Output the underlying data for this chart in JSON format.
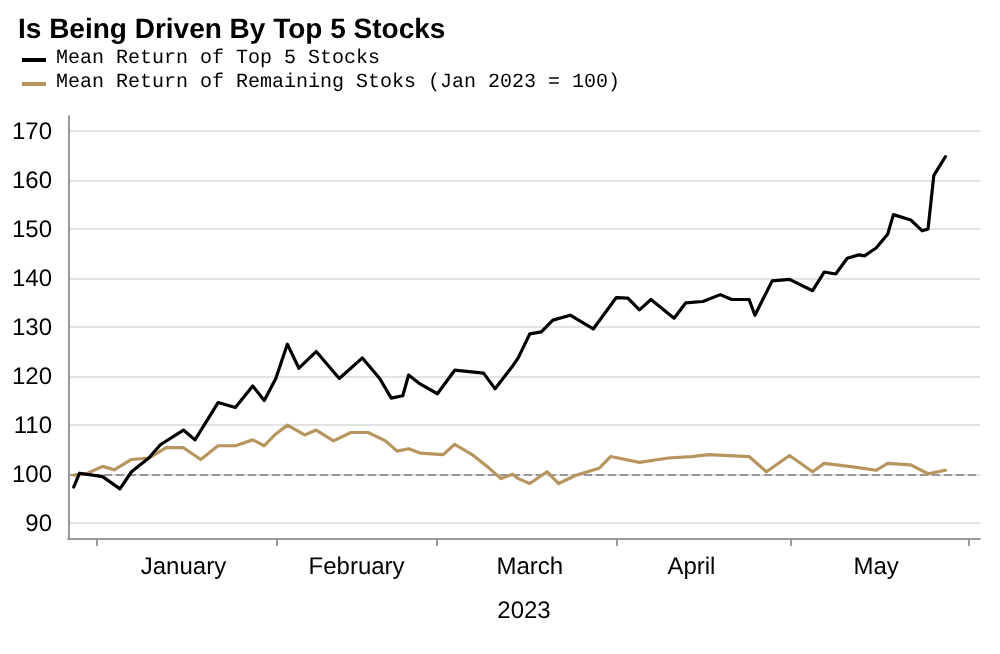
{
  "chart_data": {
    "type": "line",
    "title": "Is Being Driven By Top 5 Stocks",
    "xlabel": "2023",
    "xlim": [
      "2022-12-27",
      "2023-06-03"
    ],
    "xticks": [
      {
        "value": "2023-01-01",
        "label": null
      },
      {
        "value": "2023-02-01",
        "label": null
      },
      {
        "value": "2023-03-01",
        "label": null
      },
      {
        "value": "2023-04-01",
        "label": null
      },
      {
        "value": "2023-05-01",
        "label": null
      },
      {
        "value": "2023-06-01",
        "label": null
      },
      {
        "value": "2023-01-16",
        "label": "January"
      },
      {
        "value": "2023-02-15",
        "label": "February"
      },
      {
        "value": "2023-03-17",
        "label": "March"
      },
      {
        "value": "2023-04-14",
        "label": "April"
      },
      {
        "value": "2023-05-16",
        "label": "May"
      }
    ],
    "ylim": [
      87,
      173
    ],
    "yticks": [
      90,
      100,
      110,
      120,
      130,
      140,
      150,
      160,
      170
    ],
    "grid": "y",
    "legend": "top left",
    "marker": "none",
    "line_style": "solid",
    "ref_lines": [
      {
        "axis": "y",
        "value": 100,
        "color": "#999999",
        "line_style": "dashed"
      }
    ],
    "series": [
      {
        "name": "Mean Return of Top 5 Stocks",
        "color": "#000000",
        "x": [
          "2022-12-28",
          "2022-12-29",
          "2023-01-02",
          "2023-01-05",
          "2023-01-07",
          "2023-01-10",
          "2023-01-12",
          "2023-01-16",
          "2023-01-18",
          "2023-01-22",
          "2023-01-25",
          "2023-01-28",
          "2023-01-30",
          "2023-02-01",
          "2023-02-03",
          "2023-02-05",
          "2023-02-08",
          "2023-02-12",
          "2023-02-16",
          "2023-02-19",
          "2023-02-21",
          "2023-02-23",
          "2023-02-24",
          "2023-02-26",
          "2023-03-01",
          "2023-03-04",
          "2023-03-09",
          "2023-03-11",
          "2023-03-14",
          "2023-03-15",
          "2023-03-17",
          "2023-03-19",
          "2023-03-21",
          "2023-03-24",
          "2023-03-28",
          "2023-03-30",
          "2023-04-01",
          "2023-04-03",
          "2023-04-05",
          "2023-04-07",
          "2023-04-11",
          "2023-04-13",
          "2023-04-16",
          "2023-04-19",
          "2023-04-21",
          "2023-04-24",
          "2023-04-25",
          "2023-04-28",
          "2023-05-01",
          "2023-05-05",
          "2023-05-07",
          "2023-05-09",
          "2023-05-11",
          "2023-05-13",
          "2023-05-14",
          "2023-05-16",
          "2023-05-18",
          "2023-05-19",
          "2023-05-22",
          "2023-05-24",
          "2023-05-25",
          "2023-05-26",
          "2023-05-28"
        ],
        "values": [
          97.4,
          100.2,
          99.5,
          97,
          100.5,
          103.3,
          106,
          109,
          107,
          114.6,
          113.6,
          118,
          115,
          119.5,
          126.5,
          121.6,
          125,
          119.5,
          123.7,
          119.5,
          115.5,
          116,
          120.2,
          118.4,
          116.4,
          121.2,
          120.6,
          117.4,
          122,
          123.7,
          128.6,
          129,
          131.4,
          132.4,
          129.6,
          132.8,
          136,
          135.9,
          133.5,
          135.6,
          131.8,
          134.9,
          135.2,
          136.6,
          135.6,
          135.6,
          132.4,
          139.4,
          139.7,
          137.4,
          141.2,
          140.8,
          144,
          144.7,
          144.5,
          146.1,
          148.9,
          152.9,
          151.8,
          149.6,
          150,
          160.9,
          164.7
        ]
      },
      {
        "name": "Mean Return of Remaining Stoks (Jan 2023 = 100)",
        "color": "#b8955f",
        "x": [
          "2022-12-28",
          "2022-12-30",
          "2023-01-02",
          "2023-01-04",
          "2023-01-07",
          "2023-01-10",
          "2023-01-13",
          "2023-01-16",
          "2023-01-19",
          "2023-01-22",
          "2023-01-25",
          "2023-01-28",
          "2023-01-30",
          "2023-02-01",
          "2023-02-03",
          "2023-02-06",
          "2023-02-08",
          "2023-02-11",
          "2023-02-14",
          "2023-02-17",
          "2023-02-20",
          "2023-02-22",
          "2023-02-24",
          "2023-02-26",
          "2023-03-02",
          "2023-03-04",
          "2023-03-07",
          "2023-03-10",
          "2023-03-12",
          "2023-03-14",
          "2023-03-15",
          "2023-03-17",
          "2023-03-20",
          "2023-03-22",
          "2023-03-25",
          "2023-03-29",
          "2023-03-31",
          "2023-04-05",
          "2023-04-10",
          "2023-04-14",
          "2023-04-17",
          "2023-04-24",
          "2023-04-27",
          "2023-05-01",
          "2023-05-05",
          "2023-05-07",
          "2023-05-12",
          "2023-05-16",
          "2023-05-18",
          "2023-05-22",
          "2023-05-25",
          "2023-05-28"
        ],
        "values": [
          99.8,
          100,
          101.6,
          100.9,
          103,
          103.3,
          105.4,
          105.4,
          103,
          105.8,
          105.8,
          107,
          105.8,
          108.2,
          110,
          108,
          109,
          106.8,
          108.5,
          108.5,
          106.8,
          104.7,
          105.2,
          104.3,
          104,
          106.1,
          104,
          101.2,
          99.1,
          100,
          99.1,
          98.1,
          100.5,
          98.1,
          99.8,
          101.2,
          103.6,
          102.4,
          103.3,
          103.6,
          104,
          103.6,
          100.5,
          103.8,
          100.5,
          102.2,
          101.5,
          100.8,
          102.2,
          101.9,
          100.1,
          100.8
        ]
      }
    ]
  }
}
